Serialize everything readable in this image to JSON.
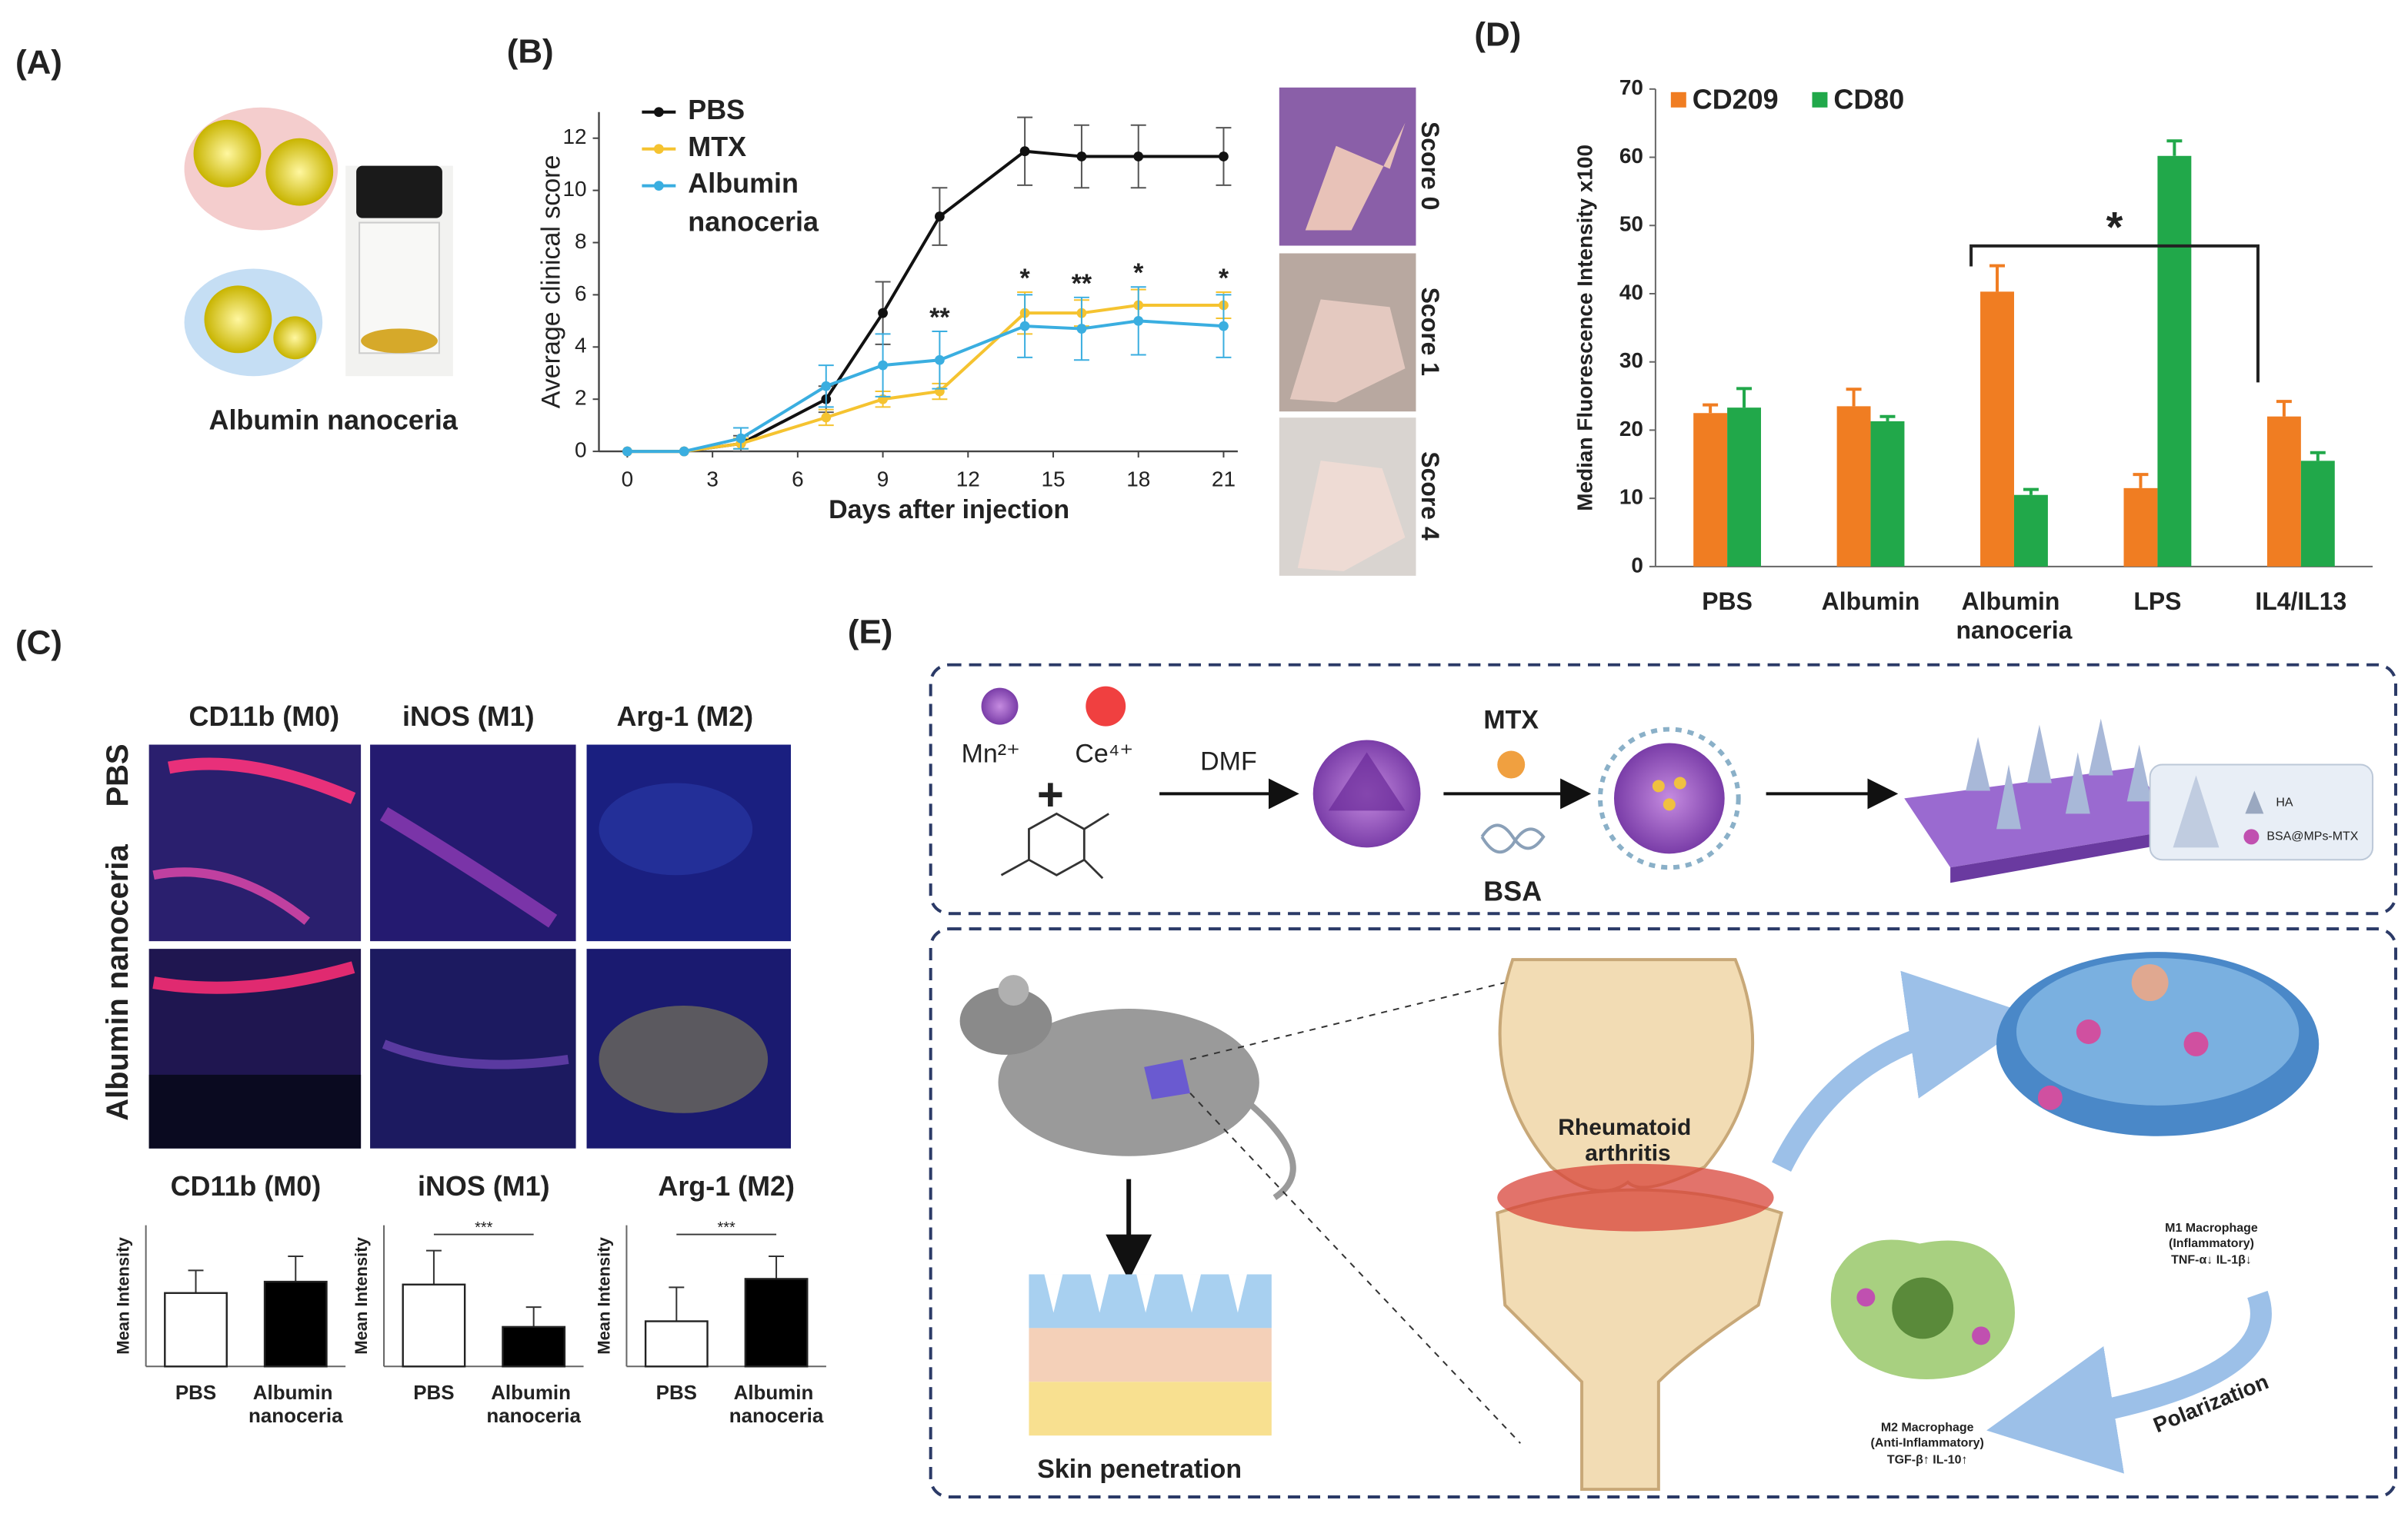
{
  "panel_labels": [
    "(A)",
    "(B)",
    "(C)",
    "(D)",
    "(E)"
  ],
  "panel_a": {
    "caption": "Albumin nanoceria"
  },
  "panel_b": {
    "scores": [
      "Score 0",
      "Score 1",
      "Score 4"
    ]
  },
  "panel_c": {
    "columns": [
      "CD11b (M0)",
      "iNOS (M1)",
      "Arg-1 (M2)"
    ],
    "rows": [
      "PBS",
      "Albumin nanoceria"
    ]
  },
  "panel_e": {
    "ions": [
      "Mn²⁺",
      "Ce⁴⁺"
    ],
    "plus": "+",
    "solvent": "DMF",
    "drug": "MTX",
    "protein": "BSA",
    "inset": [
      "HA",
      "BSA@MPs-MTX"
    ],
    "disease": "Rheumatoid arthritis",
    "skin": "Skin penetration",
    "m1": [
      "M1 Macrophage",
      "(Inflammatory)",
      "TNF-α↓  IL-1β↓"
    ],
    "m2": [
      "M2 Macrophage",
      "(Anti-Inflammatory)",
      "TGF-β↑   IL-10↑"
    ],
    "polarization": "Polarization"
  },
  "chart_data": [
    {
      "type": "line",
      "xlabel": "Days after injection",
      "ylabel": "Average clinical score",
      "x": [
        0,
        2,
        4,
        7,
        9,
        11,
        14,
        16,
        18,
        21
      ],
      "xlim": [
        -1,
        21.5
      ],
      "xticks": [
        0,
        3,
        6,
        9,
        12,
        15,
        18,
        21
      ],
      "ylim": [
        0,
        13
      ],
      "yticks": [
        0,
        2,
        4,
        6,
        8,
        10,
        12
      ],
      "series": [
        {
          "name": "PBS",
          "color": "#111111",
          "values": [
            0,
            0,
            0.3,
            2,
            5.3,
            9,
            11.5,
            11.3,
            11.3,
            11.3
          ],
          "errors": [
            0,
            0,
            0.3,
            0.5,
            1.2,
            1.1,
            1.3,
            1.2,
            1.2,
            1.1
          ]
        },
        {
          "name": "MTX",
          "color": "#f5c330",
          "values": [
            0,
            0,
            0.3,
            1.3,
            2,
            2.3,
            5.3,
            5.3,
            5.6,
            5.6
          ],
          "errors": [
            0,
            0,
            0.2,
            0.3,
            0.3,
            0.3,
            0.8,
            0.5,
            0.6,
            0.5
          ]
        },
        {
          "name": "Albumin nanoceria",
          "color": "#3aaee0",
          "values": [
            0,
            0,
            0.5,
            2.5,
            3.3,
            3.5,
            4.8,
            4.7,
            5,
            4.8
          ],
          "errors": [
            0,
            0,
            0.4,
            0.8,
            1.2,
            1.1,
            1.2,
            1.2,
            1.3,
            1.2
          ]
        }
      ],
      "annotations": [
        {
          "x": 11,
          "text": "**"
        },
        {
          "x": 14,
          "text": "*"
        },
        {
          "x": 16,
          "text": "**"
        },
        {
          "x": 18,
          "text": "*"
        },
        {
          "x": 21,
          "text": "*"
        }
      ]
    },
    {
      "type": "bar",
      "ylabel": "Median Fluorescence Intensity x100",
      "categories": [
        "PBS",
        "Albumin",
        "Albumin nanoceria",
        "LPS",
        "IL4/IL13"
      ],
      "ylim": [
        0,
        70
      ],
      "yticks": [
        0,
        10,
        20,
        30,
        40,
        50,
        60,
        70
      ],
      "series": [
        {
          "name": "CD209",
          "color": "#f07d22",
          "values": [
            22.5,
            23.5,
            40.3,
            11.5,
            22
          ],
          "errors": [
            1.2,
            2.5,
            3.8,
            2,
            2.2
          ]
        },
        {
          "name": "CD80",
          "color": "#21a84a",
          "values": [
            23.3,
            21.3,
            10.5,
            60.2,
            15.5
          ],
          "errors": [
            2.8,
            0.7,
            0.8,
            2.2,
            1.2
          ]
        }
      ],
      "annotation": "*"
    },
    {
      "type": "bar",
      "title": "CD11b (M0)",
      "ylabel": "Mean Intensity",
      "categories": [
        "PBS",
        "Albumin nanoceria"
      ],
      "ylim": [
        0,
        5
      ],
      "colors": [
        "#ffffff",
        "#000000"
      ],
      "values": [
        2.6,
        3.0
      ],
      "errors": [
        0.8,
        0.9
      ]
    },
    {
      "type": "bar",
      "title": "iNOS (M1)",
      "ylabel": "Mean Intensity",
      "categories": [
        "PBS",
        "Albumin nanoceria"
      ],
      "ylim": [
        0,
        5
      ],
      "colors": [
        "#ffffff",
        "#000000"
      ],
      "values": [
        2.9,
        1.4
      ],
      "errors": [
        1.2,
        0.7
      ],
      "annotation": "***"
    },
    {
      "type": "bar",
      "title": "Arg-1 (M2)",
      "ylabel": "Mean Intensity",
      "categories": [
        "PBS",
        "Albumin nanoceria"
      ],
      "ylim": [
        0,
        5
      ],
      "colors": [
        "#ffffff",
        "#000000"
      ],
      "values": [
        1.6,
        3.1
      ],
      "errors": [
        1.2,
        0.8
      ],
      "annotation": "***"
    }
  ]
}
